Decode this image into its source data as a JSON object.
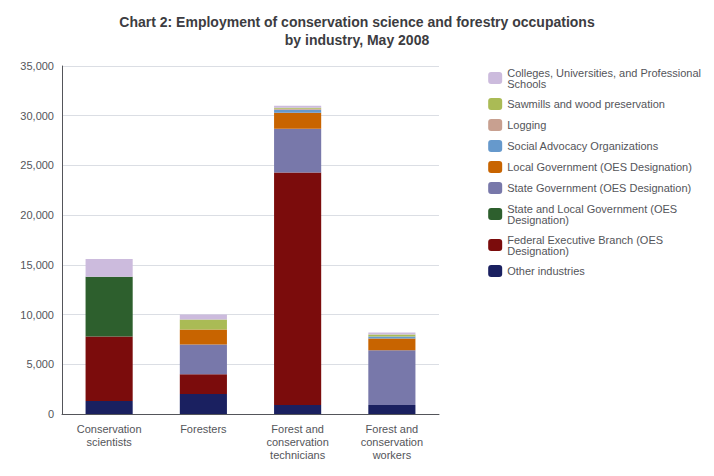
{
  "chart_data": {
    "type": "bar",
    "stacked": true,
    "title": "Chart 2: Employment of conservation science and forestry occupations\nby industry, May 2008",
    "categories": [
      "Conservation\nscientists",
      "Foresters",
      "Forest and\nconservation\ntechnicians",
      "Forest and\nconservation\nworkers"
    ],
    "series": [
      {
        "name": "Other industries",
        "color": "#1A2060",
        "values": [
          1300,
          2000,
          900,
          900
        ]
      },
      {
        "name": "Federal Executive Branch (OES\nDesignation)",
        "color": "#7B0C0C",
        "values": [
          6500,
          2000,
          23400,
          0
        ]
      },
      {
        "name": "State and Local Government (OES\nDesignation)",
        "color": "#2D5F2D",
        "values": [
          6000,
          0,
          0,
          0
        ]
      },
      {
        "name": "State Government (OES Designation)",
        "color": "#7878AA",
        "values": [
          0,
          3000,
          4400,
          5500
        ]
      },
      {
        "name": "Local Government (OES Designation)",
        "color": "#C86400",
        "values": [
          0,
          1500,
          1600,
          1200
        ]
      },
      {
        "name": "Social Advocacy Organizations",
        "color": "#6699CC",
        "values": [
          0,
          0,
          300,
          200
        ]
      },
      {
        "name": "Logging",
        "color": "#C8A090",
        "values": [
          0,
          0,
          100,
          0
        ]
      },
      {
        "name": "Sawmills and wood preservation",
        "color": "#AABB55",
        "values": [
          0,
          1000,
          100,
          200
        ]
      },
      {
        "name": "Colleges, Universities, and Professional\nSchools",
        "color": "#CCBBDD",
        "values": [
          1800,
          500,
          200,
          200
        ]
      }
    ],
    "ylim": [
      0,
      35000
    ],
    "yticks": [
      0,
      {
        "value": 5000,
        "label": "5,000"
      },
      {
        "value": 10000,
        "label": "10,000"
      },
      {
        "value": 15000,
        "label": "15,000"
      },
      {
        "value": 20000,
        "label": "20,000"
      },
      {
        "value": 25000,
        "label": "25,000"
      },
      {
        "value": 30000,
        "label": "30,000"
      },
      {
        "value": 35000,
        "label": "35,000"
      }
    ],
    "grid": true,
    "legend": "right"
  }
}
